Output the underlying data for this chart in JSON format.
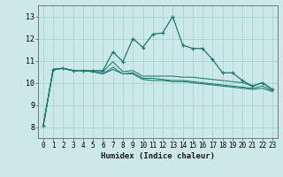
{
  "xlabel": "Humidex (Indice chaleur)",
  "bg_color": "#cce8e8",
  "grid_color": "#aad4d4",
  "line_color": "#1a7a6e",
  "xlim": [
    -0.5,
    23.5
  ],
  "ylim": [
    7.5,
    13.5
  ],
  "xticks": [
    0,
    1,
    2,
    3,
    4,
    5,
    6,
    7,
    8,
    9,
    10,
    11,
    12,
    13,
    14,
    15,
    16,
    17,
    18,
    19,
    20,
    21,
    22,
    23
  ],
  "yticks": [
    8,
    9,
    10,
    11,
    12,
    13
  ],
  "series": [
    [
      8.05,
      10.6,
      10.65,
      10.55,
      10.55,
      10.55,
      10.55,
      11.4,
      10.95,
      12.0,
      11.6,
      12.2,
      12.25,
      13.0,
      11.7,
      11.55,
      11.55,
      11.05,
      10.45,
      10.45,
      10.1,
      9.85,
      10.0,
      9.7
    ],
    [
      8.05,
      10.6,
      10.65,
      10.55,
      10.55,
      10.5,
      10.5,
      10.95,
      10.5,
      10.55,
      10.3,
      10.3,
      10.3,
      10.3,
      10.25,
      10.25,
      10.2,
      10.15,
      10.1,
      10.05,
      10.0,
      9.85,
      10.0,
      9.7
    ],
    [
      8.05,
      10.6,
      10.65,
      10.55,
      10.55,
      10.5,
      10.4,
      10.7,
      10.4,
      10.45,
      10.2,
      10.2,
      10.15,
      10.1,
      10.1,
      10.05,
      10.0,
      9.95,
      9.9,
      9.85,
      9.8,
      9.75,
      9.85,
      9.65
    ],
    [
      8.05,
      10.6,
      10.65,
      10.55,
      10.55,
      10.5,
      10.4,
      10.6,
      10.4,
      10.4,
      10.15,
      10.1,
      10.1,
      10.05,
      10.05,
      10.0,
      9.95,
      9.9,
      9.85,
      9.8,
      9.75,
      9.7,
      9.75,
      9.6
    ]
  ]
}
